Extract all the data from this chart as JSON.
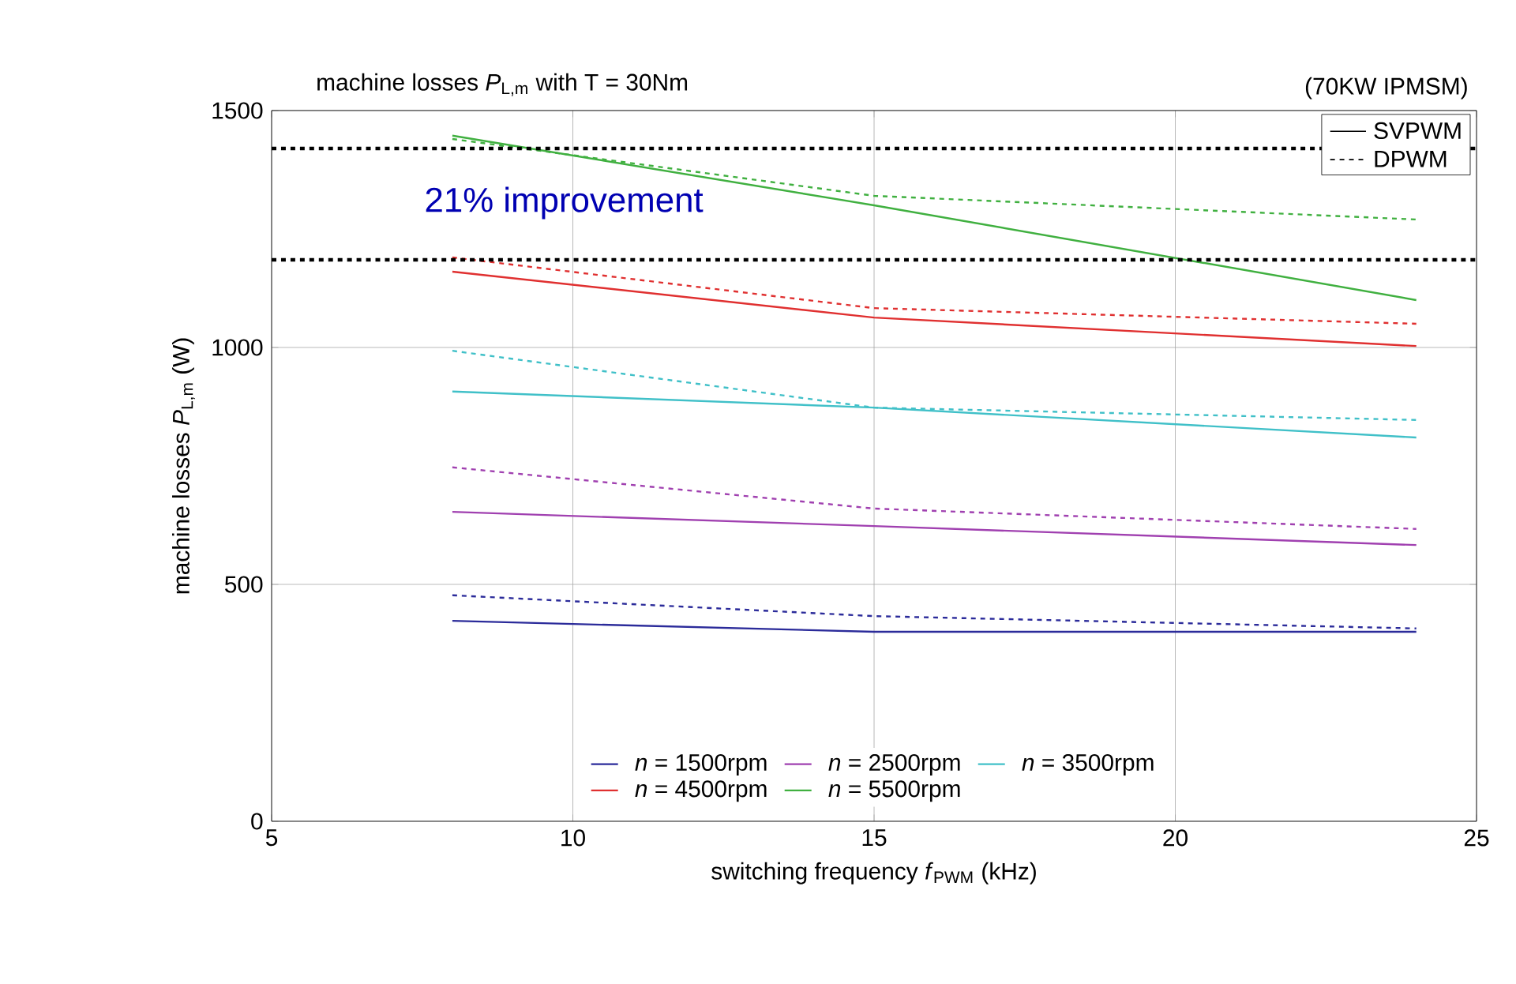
{
  "chart_data": {
    "type": "line",
    "title": "machine losses *P*$_{L,m}$ with T = 30Nm",
    "xlabel": "switching frequency *f*$_{PWM}$ (kHz)",
    "ylabel": "machine losses *P*$_{L,m}$ (W)",
    "xlim": [
      5,
      25
    ],
    "ylim": [
      0,
      1500
    ],
    "xticks": [
      5,
      10,
      15,
      20,
      25
    ],
    "yticks": [
      0,
      500,
      1000,
      1500
    ],
    "grid": true,
    "legend": "bottom",
    "x": [
      8,
      15,
      24
    ],
    "series": [
      {
        "name": "*n* = 1500rpm",
        "color": "#2b2b9a",
        "values": [
          423,
          400,
          400
        ],
        "line_style": "solid"
      },
      {
        "name": "*n* = 2500rpm",
        "color": "#a040b0",
        "values": [
          653,
          623,
          583
        ],
        "line_style": "solid"
      },
      {
        "name": "*n* = 3500rpm",
        "color": "#40c0c8",
        "values": [
          907,
          873,
          810
        ],
        "line_style": "solid"
      },
      {
        "name": "*n* = 4500rpm",
        "color": "#e03030",
        "values": [
          1160,
          1063,
          1003
        ],
        "line_style": "solid"
      },
      {
        "name": "*n* = 5500rpm",
        "color": "#40b040",
        "values": [
          1447,
          1300,
          1100
        ],
        "line_style": "solid"
      },
      {
        "color": "#2b2b9a",
        "values": [
          477,
          433,
          407
        ],
        "line_style": "dashed"
      },
      {
        "color": "#a040b0",
        "values": [
          747,
          660,
          617
        ],
        "line_style": "dashed"
      },
      {
        "color": "#40c0c8",
        "values": [
          993,
          873,
          847
        ],
        "line_style": "dashed"
      },
      {
        "color": "#e03030",
        "values": [
          1190,
          1083,
          1050
        ],
        "line_style": "dashed"
      },
      {
        "color": "#40b040",
        "values": [
          1440,
          1320,
          1270
        ],
        "line_style": "dashed"
      }
    ],
    "ref_lines": [
      {
        "axis": "y",
        "value": 1420,
        "color": "#000000",
        "line_style": "dashed"
      },
      {
        "axis": "y",
        "value": 1185,
        "color": "#000000",
        "line_style": "dashed"
      }
    ],
    "annotations": [
      "(70KW IPMSM)",
      "SVPWM",
      "DPWM",
      "21% improvement"
    ]
  }
}
